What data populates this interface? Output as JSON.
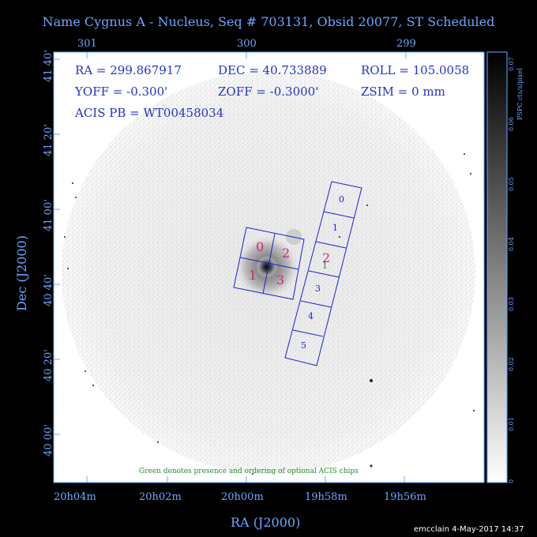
{
  "title": "Name Cygnus A - Nucleus, Seq # 703131, Obsid 20077, ST Scheduled",
  "top_ticks": [
    "301",
    "300",
    "299"
  ],
  "bottom_ticks": [
    "20h04m",
    "20h02m",
    "20h00m",
    "19h58m",
    "19h56m"
  ],
  "left_ticks": [
    "41 40'",
    "41 20'",
    "41 00'",
    "40 40'",
    "40 20'",
    "40 00'"
  ],
  "x_axis_title": "RA (J2000)",
  "y_axis_title": "Dec (J2000)",
  "params": {
    "ra": "RA = 299.867917",
    "dec": "DEC = 40.733889",
    "roll": "ROLL = 105.0058",
    "yoff": "YOFF =  -0.300'",
    "zoff": "ZOFF = -0.3000'",
    "zsim": "ZSIM = 0 mm",
    "acis_pb": "ACIS PB = WT00458034"
  },
  "chip_labels": {
    "i_array": [
      "0",
      "2",
      "1",
      "3"
    ],
    "s_array": [
      "0",
      "1",
      "2",
      "3",
      "4",
      "5"
    ],
    "optional_marker": "1"
  },
  "colorbar": {
    "title": "PSPC cts/s/pixel",
    "ticks": [
      "0",
      "0.01",
      "0.02",
      "0.03",
      "0.04",
      "0.05",
      "0.06",
      "0.07"
    ]
  },
  "note": "Green denotes presence and ordering of optional ACIS chips",
  "footer": "emcclain  4-May-2017 14:37",
  "colors": {
    "axis": "#6aa8ff",
    "chip_outline": "#1a22d0",
    "i_array_label": "#d4207a",
    "s_array_label": "#1a22d0",
    "optional": "#2a8a2a",
    "text": "#2233cc"
  }
}
